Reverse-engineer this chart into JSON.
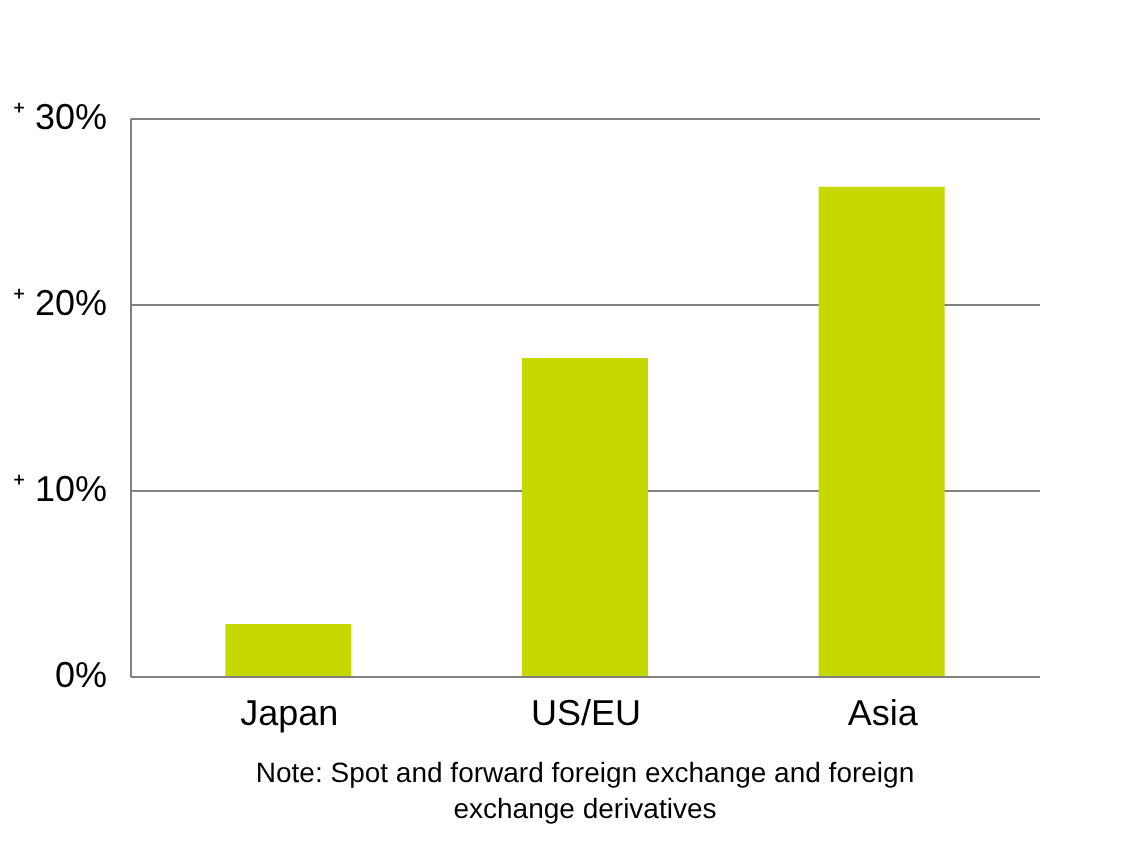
{
  "chart_data": {
    "type": "bar",
    "categories": [
      "Japan",
      "US/EU",
      "Asia"
    ],
    "values": [
      2.8,
      17.1,
      26.3
    ],
    "color": "#c5d900",
    "ylim": [
      0,
      30
    ],
    "yticks": [
      {
        "value": 0,
        "label": "0%"
      },
      {
        "value": 10,
        "label": "⁺ 10%"
      },
      {
        "value": 20,
        "label": "⁺ 20%"
      },
      {
        "value": 30,
        "label": "⁺ 30%"
      }
    ],
    "grid": "y",
    "annotations": [
      "Note: Spot and forward foreign exchange and foreign exchange derivatives"
    ]
  }
}
